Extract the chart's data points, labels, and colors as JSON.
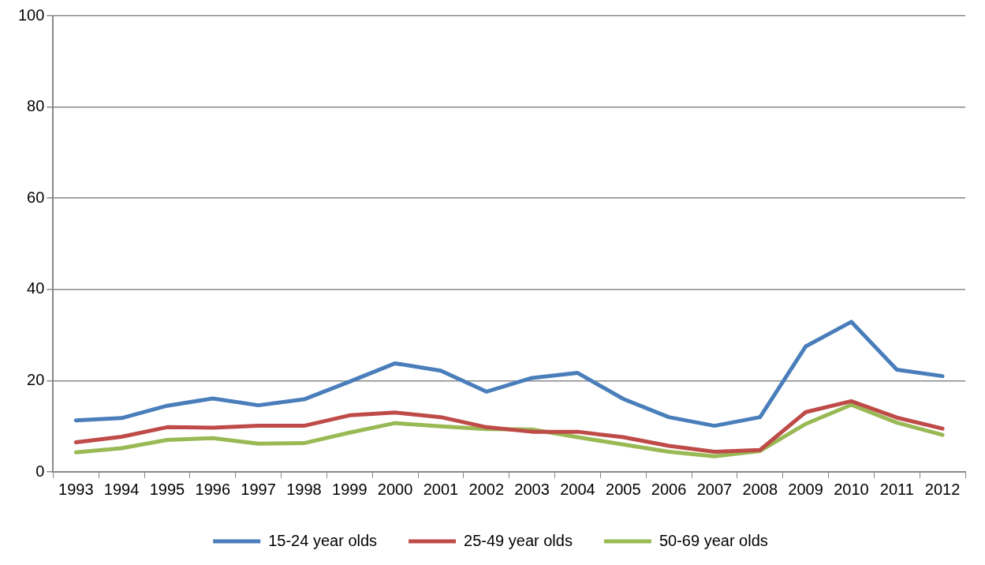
{
  "chart_data": {
    "type": "line",
    "categories": [
      "1993",
      "1994",
      "1995",
      "1996",
      "1997",
      "1998",
      "1999",
      "2000",
      "2001",
      "2002",
      "2003",
      "2004",
      "2005",
      "2006",
      "2007",
      "2008",
      "2009",
      "2010",
      "2011",
      "2012"
    ],
    "series": [
      {
        "name": "15-24 year olds",
        "color": "#4a7ebb",
        "values": [
          11.3,
          11.8,
          14.5,
          16.1,
          14.6,
          15.9,
          19.8,
          23.8,
          22.2,
          17.6,
          20.6,
          21.7,
          16.0,
          12.0,
          10.1,
          12.0,
          27.5,
          32.9,
          22.4,
          21.0
        ]
      },
      {
        "name": "25-49 year olds",
        "color": "#be4b48",
        "values": [
          6.5,
          7.7,
          9.8,
          9.7,
          10.1,
          10.1,
          12.4,
          13.0,
          12.0,
          9.8,
          8.8,
          8.8,
          7.6,
          5.7,
          4.4,
          4.8,
          13.1,
          15.5,
          11.9,
          9.5
        ]
      },
      {
        "name": "50-69 year olds",
        "color": "#98b954",
        "values": [
          4.3,
          5.2,
          7.0,
          7.4,
          6.2,
          6.3,
          8.6,
          10.7,
          10.0,
          9.4,
          9.3,
          7.6,
          6.0,
          4.4,
          3.4,
          4.6,
          10.5,
          14.7,
          10.8,
          8.1
        ]
      }
    ],
    "ylim": [
      0,
      100
    ],
    "yticks": [
      0,
      20,
      40,
      60,
      80,
      100
    ],
    "grid": "y",
    "legend": "bottom",
    "marker": "none",
    "line_style": "solid"
  }
}
